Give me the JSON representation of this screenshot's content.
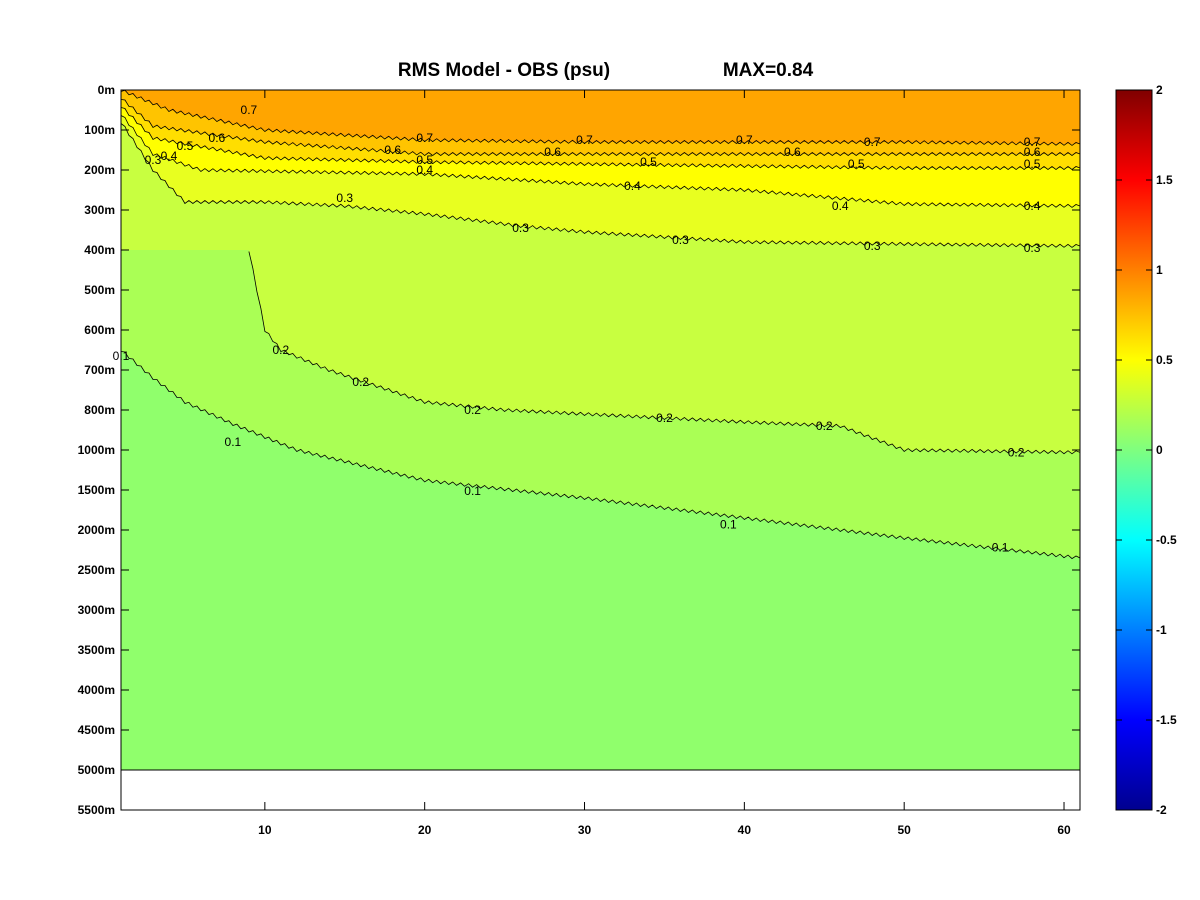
{
  "chart_data": {
    "type": "heatmap",
    "title": "RMS Model - OBS (psu)",
    "annotation": "MAX=0.84",
    "xlabel": "",
    "ylabel": "",
    "xlim": [
      1,
      61
    ],
    "x_ticks": [
      10,
      20,
      30,
      40,
      50,
      60
    ],
    "y_tick_labels": [
      "0m",
      "100m",
      "200m",
      "300m",
      "400m",
      "500m",
      "600m",
      "700m",
      "800m",
      "1000m",
      "1500m",
      "2000m",
      "2500m",
      "3000m",
      "3500m",
      "4000m",
      "4500m",
      "5000m",
      "5500m"
    ],
    "data_bottom_label": "5000m",
    "colorbar": {
      "range": [
        -2,
        2
      ],
      "ticks": [
        "2",
        "1.5",
        "1",
        "0.5",
        "0",
        "-0.5",
        "-1",
        "-1.5",
        "-2"
      ],
      "colormap": "jet"
    },
    "value_bands": [
      {
        "value": 0.75,
        "color": "#ffa500"
      },
      {
        "value": 0.65,
        "color": "#ffc400"
      },
      {
        "value": 0.55,
        "color": "#ffde00"
      },
      {
        "value": 0.45,
        "color": "#ffff00"
      },
      {
        "value": 0.35,
        "color": "#e8ff20"
      },
      {
        "value": 0.25,
        "color": "#c8ff40"
      },
      {
        "value": 0.15,
        "color": "#aaff55"
      },
      {
        "value": 0.05,
        "color": "#90ff6c"
      }
    ],
    "contours": [
      {
        "level": "0.7",
        "points": [
          [
            1,
            "0m"
          ],
          [
            4,
            "50m"
          ],
          [
            10,
            "100m"
          ],
          [
            20,
            "125m"
          ],
          [
            30,
            "130m"
          ],
          [
            40,
            "130m"
          ],
          [
            50,
            "130m"
          ],
          [
            61,
            "135m"
          ]
        ],
        "labels": [
          [
            9,
            "50m"
          ],
          [
            20,
            "120m"
          ],
          [
            30,
            "125m"
          ],
          [
            40,
            "125m"
          ],
          [
            48,
            "130m"
          ],
          [
            58,
            "130m"
          ]
        ]
      },
      {
        "level": "0.6",
        "points": [
          [
            1,
            "20m"
          ],
          [
            3,
            "90m"
          ],
          [
            10,
            "130m"
          ],
          [
            20,
            "160m"
          ],
          [
            30,
            "160m"
          ],
          [
            40,
            "160m"
          ],
          [
            50,
            "160m"
          ],
          [
            61,
            "160m"
          ]
        ],
        "labels": [
          [
            7,
            "120m"
          ],
          [
            18,
            "150m"
          ],
          [
            28,
            "155m"
          ],
          [
            43,
            "155m"
          ],
          [
            58,
            "155m"
          ]
        ]
      },
      {
        "level": "0.5",
        "points": [
          [
            1,
            "40m"
          ],
          [
            3,
            "120m"
          ],
          [
            10,
            "170m"
          ],
          [
            20,
            "180m"
          ],
          [
            30,
            "185m"
          ],
          [
            40,
            "190m"
          ],
          [
            50,
            "195m"
          ],
          [
            61,
            "195m"
          ]
        ],
        "labels": [
          [
            5,
            "140m"
          ],
          [
            20,
            "175m"
          ],
          [
            34,
            "180m"
          ],
          [
            47,
            "185m"
          ],
          [
            58,
            "185m"
          ]
        ]
      },
      {
        "level": "0.4",
        "points": [
          [
            1,
            "60m"
          ],
          [
            3,
            "160m"
          ],
          [
            6,
            "200m"
          ],
          [
            20,
            "210m"
          ],
          [
            30,
            "235m"
          ],
          [
            40,
            "250m"
          ],
          [
            50,
            "285m"
          ],
          [
            61,
            "290m"
          ]
        ],
        "labels": [
          [
            4,
            "165m"
          ],
          [
            20,
            "200m"
          ],
          [
            33,
            "240m"
          ],
          [
            46,
            "290m"
          ],
          [
            58,
            "290m"
          ]
        ]
      },
      {
        "level": "0.3",
        "points": [
          [
            1,
            "80m"
          ],
          [
            3,
            "200m"
          ],
          [
            5,
            "280m"
          ],
          [
            10,
            "280m"
          ],
          [
            15,
            "290m"
          ],
          [
            20,
            "310m"
          ],
          [
            26,
            "340m"
          ],
          [
            30,
            "355m"
          ],
          [
            40,
            "380m"
          ],
          [
            50,
            "385m"
          ],
          [
            61,
            "390m"
          ]
        ],
        "labels": [
          [
            3,
            "175m"
          ],
          [
            15,
            "270m"
          ],
          [
            26,
            "345m"
          ],
          [
            36,
            "375m"
          ],
          [
            48,
            "390m"
          ],
          [
            58,
            "395m"
          ]
        ]
      },
      {
        "level": "0.2",
        "points": [
          [
            9,
            "400m"
          ],
          [
            10,
            "600m"
          ],
          [
            11,
            "650m"
          ],
          [
            14,
            "700m"
          ],
          [
            20,
            "780m"
          ],
          [
            25,
            "800m"
          ],
          [
            30,
            "820m"
          ],
          [
            40,
            "860m"
          ],
          [
            46,
            "880m"
          ],
          [
            50,
            "1000m"
          ],
          [
            61,
            "1030m"
          ]
        ],
        "labels": [
          [
            11,
            "650m"
          ],
          [
            16,
            "730m"
          ],
          [
            23,
            "800m"
          ],
          [
            35,
            "840m"
          ],
          [
            45,
            "880m"
          ],
          [
            57,
            "1030m"
          ]
        ]
      },
      {
        "level": "0.1",
        "points": [
          [
            1,
            "650m"
          ],
          [
            3,
            "720m"
          ],
          [
            5,
            "780m"
          ],
          [
            8,
            "870m"
          ],
          [
            12,
            "1000m"
          ],
          [
            20,
            "1380m"
          ],
          [
            30,
            "1600m"
          ],
          [
            40,
            "1850m"
          ],
          [
            50,
            "2100m"
          ],
          [
            61,
            "2350m"
          ]
        ],
        "labels": [
          [
            1,
            "665m"
          ],
          [
            8,
            "960m"
          ],
          [
            23,
            "1510m"
          ],
          [
            39,
            "1930m"
          ],
          [
            56,
            "2220m"
          ]
        ]
      }
    ]
  }
}
